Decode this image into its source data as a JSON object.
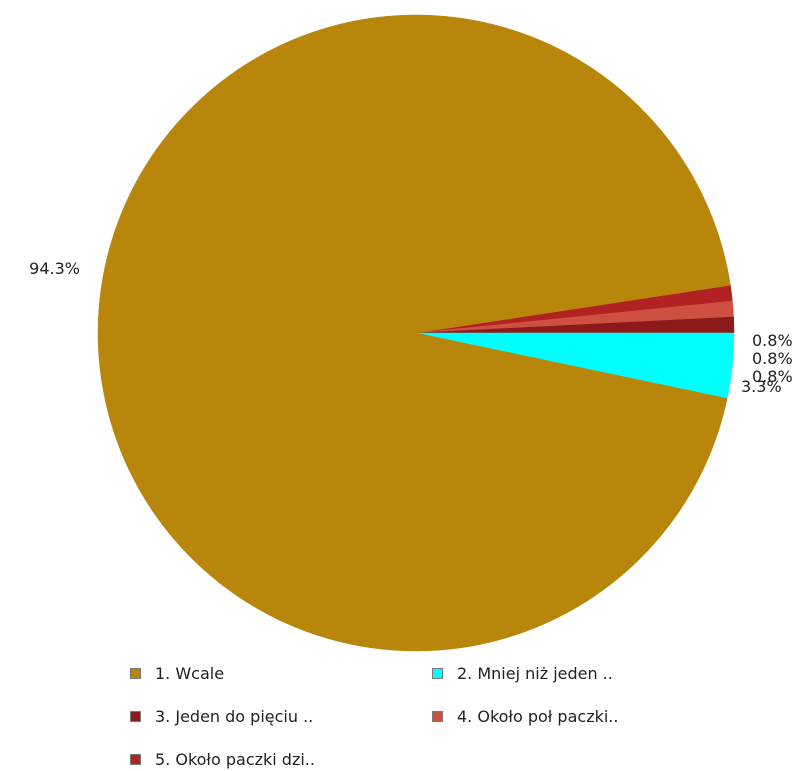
{
  "chart_data": {
    "type": "pie",
    "slices": [
      {
        "label": "1. Wcale",
        "value": 94.3,
        "display": "94.3%",
        "color": "#b8860b"
      },
      {
        "label": "2. Mniej niż jeden ..",
        "value": 3.3,
        "display": "3.3%",
        "color": "#00ffff"
      },
      {
        "label": "3. Jeden do pięciu ..",
        "value": 0.8,
        "display": "0.8%",
        "color": "#8b1a1a"
      },
      {
        "label": "4. Około poł paczki..",
        "value": 0.8,
        "display": "0.8%",
        "color": "#cd5040"
      },
      {
        "label": "5. Około paczki dzi..",
        "value": 0.8,
        "display": "0.8%",
        "color": "#b22222"
      }
    ],
    "legend_position": "bottom"
  }
}
